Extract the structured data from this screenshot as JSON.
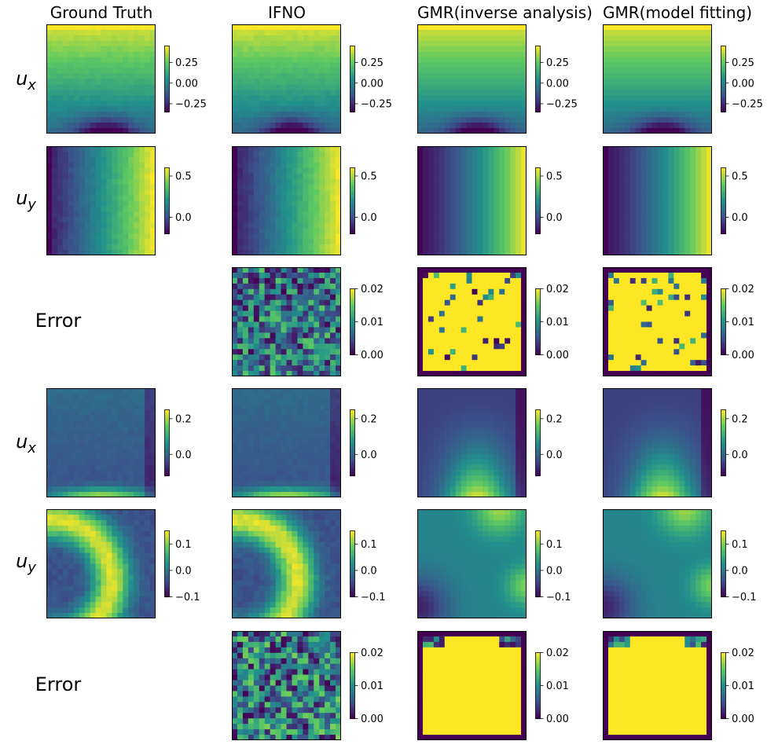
{
  "columns": [
    "Ground Truth",
    "IFNO",
    "GMR(inverse analysis)",
    "GMR(model fitting)"
  ],
  "row_labels": [
    {
      "base": "u",
      "sub": "x"
    },
    {
      "base": "u",
      "sub": "y"
    },
    {
      "text": "Error"
    },
    {
      "base": "u",
      "sub": "x"
    },
    {
      "base": "u",
      "sub": "y"
    },
    {
      "text": "Error"
    }
  ],
  "chart_data": {
    "type": "heatmap",
    "colormap": "viridis",
    "grid_resolution": 20,
    "colormap_stops": [
      "#440154",
      "#3b528b",
      "#21918c",
      "#5ec962",
      "#fde725"
    ],
    "axes_ticks": "none",
    "rows": [
      {
        "label": "u_x",
        "field": "ux_a",
        "vmin": -0.35,
        "vmax": 0.45,
        "cbar_ticks": [
          {
            "v": 0.25,
            "t": "0.25"
          },
          {
            "v": 0.0,
            "t": "0.00"
          },
          {
            "v": -0.25,
            "t": "−0.25"
          }
        ],
        "panels": [
          "Ground Truth",
          "IFNO",
          "GMR(inverse analysis)",
          "GMR(model fitting)"
        ]
      },
      {
        "label": "u_y",
        "field": "uy_a",
        "vmin": -0.2,
        "vmax": 0.6,
        "cbar_ticks": [
          {
            "v": 0.5,
            "t": "0.5"
          },
          {
            "v": 0.0,
            "t": "0.0"
          }
        ],
        "panels": [
          "Ground Truth",
          "IFNO",
          "GMR(inverse analysis)",
          "GMR(model fitting)"
        ]
      },
      {
        "label": "Error",
        "field": "err_a",
        "vmin": 0.0,
        "vmax": 0.02,
        "cbar_ticks": [
          {
            "v": 0.02,
            "t": "0.02"
          },
          {
            "v": 0.01,
            "t": "0.01"
          },
          {
            "v": 0.0,
            "t": "0.00"
          }
        ],
        "panels": [
          "IFNO",
          "GMR(inverse analysis)",
          "GMR(model fitting)"
        ]
      },
      {
        "label": "u_x",
        "field": "ux_b",
        "vmin": -0.12,
        "vmax": 0.25,
        "cbar_ticks": [
          {
            "v": 0.2,
            "t": "0.2"
          },
          {
            "v": 0.0,
            "t": "0.0"
          }
        ],
        "panels": [
          "Ground Truth",
          "IFNO",
          "GMR(inverse analysis)",
          "GMR(model fitting)"
        ]
      },
      {
        "label": "u_y",
        "field": "uy_b",
        "vmin": -0.1,
        "vmax": 0.15,
        "cbar_ticks": [
          {
            "v": 0.1,
            "t": "0.1"
          },
          {
            "v": 0.0,
            "t": "0.0"
          },
          {
            "v": -0.1,
            "t": "−0.1"
          }
        ],
        "panels": [
          "Ground Truth",
          "IFNO",
          "GMR(inverse analysis)",
          "GMR(model fitting)"
        ]
      },
      {
        "label": "Error",
        "field": "err_b",
        "vmin": 0.0,
        "vmax": 0.02,
        "cbar_ticks": [
          {
            "v": 0.02,
            "t": "0.02"
          },
          {
            "v": 0.01,
            "t": "0.01"
          },
          {
            "v": 0.0,
            "t": "0.00"
          }
        ],
        "panels": [
          "IFNO",
          "GMR(inverse analysis)",
          "GMR(model fitting)"
        ]
      }
    ]
  }
}
